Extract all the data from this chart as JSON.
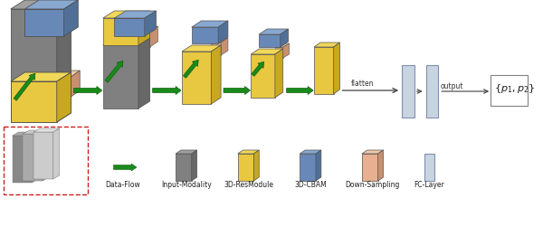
{
  "bg_color": "#ffffff",
  "colors": {
    "gray_front": "#808080",
    "gray_top": "#a0a0a0",
    "gray_side": "#686868",
    "yellow_front": "#e8c840",
    "yellow_top": "#f0d858",
    "yellow_side": "#c8a820",
    "blue_front": "#6888b8",
    "blue_top": "#88a8d0",
    "blue_side": "#507098",
    "peach_front": "#e8b090",
    "peach_top": "#f0c8a8",
    "peach_side": "#c89070",
    "fc_fill": "#c8d4e0",
    "fc_edge": "#8090b0",
    "green": "#1a8a1a",
    "green_dark": "#106010",
    "red": "#cc2020",
    "black": "#202020",
    "sheet_dark": "#888888",
    "sheet_mid": "#aaaaaa",
    "sheet_light": "#cccccc",
    "sheet_top_dark": "#aaaaaa",
    "sheet_top_mid": "#cccccc",
    "sheet_top_light": "#e0e0e0"
  },
  "legend_labels": [
    "Data-Flow",
    "Input-Modality",
    "3D-ResModule",
    "3D-CBAM",
    "Down-Sampling",
    "FC-Layer"
  ],
  "flatten_text": "flatten",
  "output_text": "output",
  "result_text": "{p1, p2}"
}
